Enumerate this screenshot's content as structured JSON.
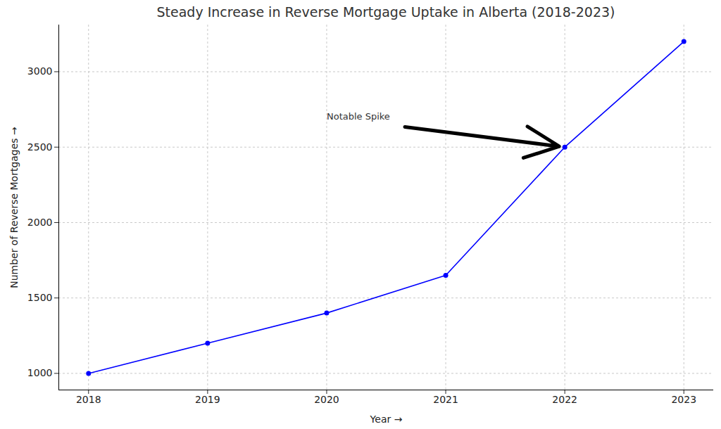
{
  "chart_data": {
    "type": "line",
    "title": "Steady Increase in Reverse Mortgage Uptake in Alberta (2018-2023)",
    "x_label": "Year",
    "y_label": "Number of Reverse Mortgages",
    "x": [
      2018,
      2019,
      2020,
      2021,
      2022,
      2023
    ],
    "values": [
      1000,
      1200,
      1400,
      1650,
      2500,
      3200
    ],
    "color": "#0000ff",
    "marker": "o",
    "xlim": [
      2017.75,
      2023.25
    ],
    "xticks": [
      2018,
      2019,
      2020,
      2021,
      2022,
      2023
    ],
    "ylim": [
      890,
      3310
    ],
    "yticks": [
      1000,
      1500,
      2000,
      2500,
      3000
    ],
    "grid": true,
    "annotations": [
      {
        "text": "Notable Spike",
        "x": 2020,
        "y": 2700,
        "target_x": 2022,
        "target_y": 2500
      }
    ]
  }
}
